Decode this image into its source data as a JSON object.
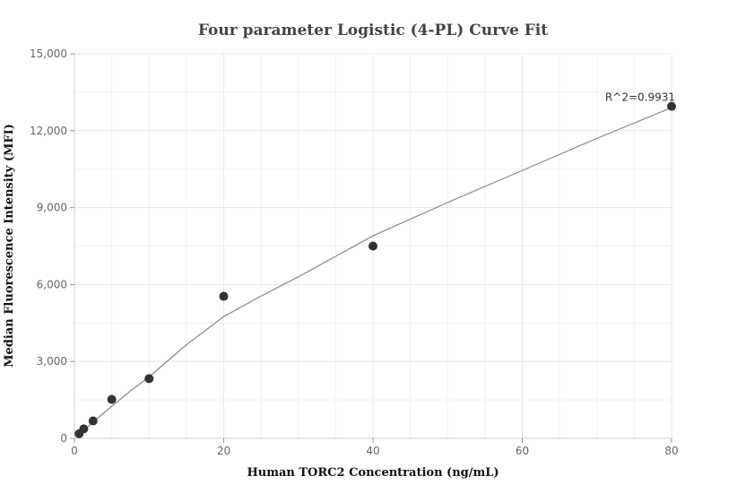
{
  "chart_data": {
    "type": "scatter",
    "title": "Four parameter Logistic (4-PL) Curve Fit",
    "xlabel": "Human TORC2 Concentration (ng/mL)",
    "ylabel": "Median Fluorescence Intensity (MFI)",
    "xlim": [
      0,
      80
    ],
    "ylim": [
      0,
      15000
    ],
    "x_ticks": [
      0,
      20,
      40,
      60,
      80
    ],
    "x_tick_labels": [
      "0",
      "20",
      "40",
      "60",
      "80"
    ],
    "y_ticks": [
      0,
      3000,
      6000,
      9000,
      12000,
      15000
    ],
    "y_tick_labels": [
      "0",
      "3,000",
      "6,000",
      "9,000",
      "12,000",
      "15,000"
    ],
    "grid": true,
    "series": [
      {
        "points": [
          {
            "x": 0.625,
            "y": 180
          },
          {
            "x": 1.25,
            "y": 370
          },
          {
            "x": 2.5,
            "y": 680
          },
          {
            "x": 5,
            "y": 1520
          },
          {
            "x": 10,
            "y": 2330
          },
          {
            "x": 20,
            "y": 5540
          },
          {
            "x": 40,
            "y": 7500
          },
          {
            "x": 80,
            "y": 12950
          }
        ],
        "color": "#333333"
      }
    ],
    "fit_curve": {
      "x": [
        0.3125,
        1,
        2,
        3,
        5,
        7.5,
        10,
        15,
        20,
        25,
        30,
        40,
        50,
        60,
        70,
        80
      ],
      "y": [
        60,
        230,
        500,
        760,
        1250,
        1850,
        2400,
        3650,
        4750,
        5550,
        6300,
        7900,
        9200,
        10450,
        11700,
        12900
      ],
      "color": "#888888"
    },
    "annotations": [
      {
        "text": "R^2=0.9931",
        "x": 80,
        "y": 12950
      }
    ]
  }
}
